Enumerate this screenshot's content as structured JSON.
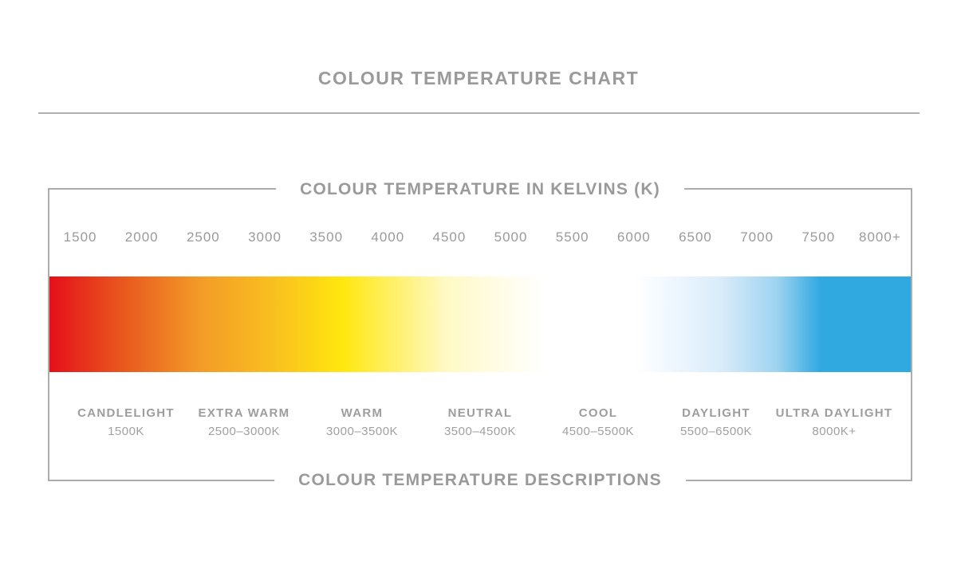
{
  "page": {
    "title": "COLOUR TEMPERATURE CHART"
  },
  "colors": {
    "text_gray": "#9a9a9a",
    "border_gray": "#adadad",
    "rule_gray": "#b0b0b0"
  },
  "chart_data": {
    "type": "heatmap",
    "title": "COLOUR TEMPERATURE CHART",
    "top_axis_label": "COLOUR TEMPERATURE IN KELVINS (K)",
    "bottom_axis_label": "COLOUR TEMPERATURE DESCRIPTIONS",
    "kelvin_ticks": [
      "1500",
      "2000",
      "2500",
      "3000",
      "3500",
      "4000",
      "4500",
      "5000",
      "5500",
      "6000",
      "6500",
      "7000",
      "7500",
      "8000+"
    ],
    "segments": [
      {
        "label": "CANDLELIGHT",
        "range": "1500K"
      },
      {
        "label": "EXTRA WARM",
        "range": "2500–3000K"
      },
      {
        "label": "WARM",
        "range": "3000–3500K"
      },
      {
        "label": "NEUTRAL",
        "range": "3500–4500K"
      },
      {
        "label": "COOL",
        "range": "4500–5500K"
      },
      {
        "label": "DAYLIGHT",
        "range": "5500–6500K"
      },
      {
        "label": "ULTRA DAYLIGHT",
        "range": "8000K+"
      }
    ],
    "gradient_stops": [
      {
        "pos": 0,
        "color": "#e50f1a"
      },
      {
        "pos": 8.3,
        "color": "#e8561e"
      },
      {
        "pos": 17.5,
        "color": "#f39b28"
      },
      {
        "pos": 27,
        "color": "#f9c41e"
      },
      {
        "pos": 34,
        "color": "#ffe70e"
      },
      {
        "pos": 46,
        "color": "#fff9c4"
      },
      {
        "pos": 55,
        "color": "#fffef4"
      },
      {
        "pos": 58,
        "color": "#ffffff"
      },
      {
        "pos": 68,
        "color": "#ffffff"
      },
      {
        "pos": 78,
        "color": "#d9ecfa"
      },
      {
        "pos": 84.5,
        "color": "#9ed3f0"
      },
      {
        "pos": 89.5,
        "color": "#2fa9e0"
      },
      {
        "pos": 100,
        "color": "#2fa9e0"
      }
    ],
    "legend_position": "none",
    "grid": false
  }
}
